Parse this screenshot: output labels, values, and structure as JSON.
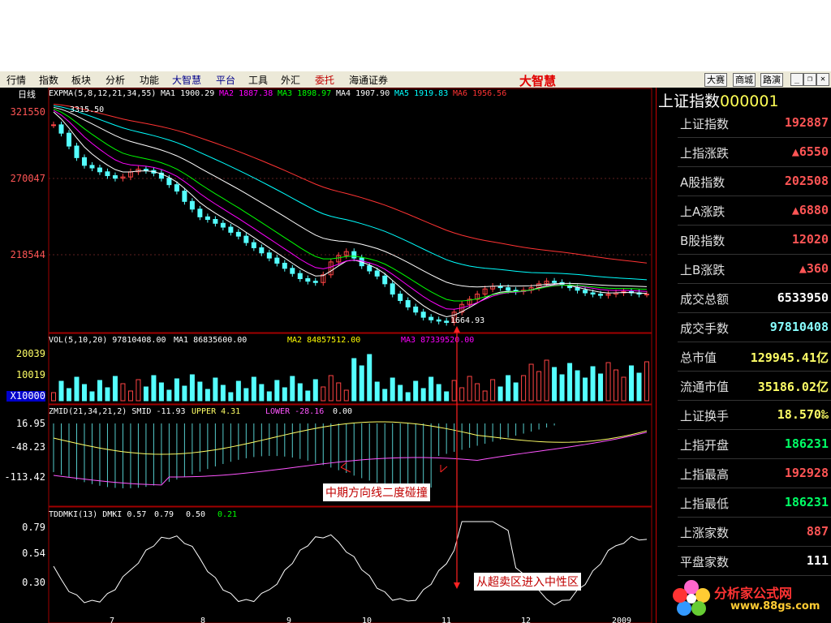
{
  "menubar": {
    "items": [
      "行情",
      "指数",
      "板块",
      "分析",
      "功能",
      "大智慧",
      "平台",
      "工具",
      "外汇",
      "委托",
      "海通证券"
    ],
    "logo": "大智慧",
    "right_buttons": [
      "大赛",
      "商城",
      "路演"
    ]
  },
  "chart_data": {
    "type": "line",
    "period_label": "日线",
    "main": {
      "indicator_line": "EXPMA(5,8,12,21,34,55)",
      "ma_values": [
        {
          "name": "MA1",
          "value": "1900.29",
          "color": "#ffffff"
        },
        {
          "name": "MA2",
          "value": "1887.38",
          "color": "#ff00ff"
        },
        {
          "name": "MA3",
          "value": "1898.97",
          "color": "#00ff00"
        },
        {
          "name": "MA4",
          "value": "1907.90",
          "color": "#ffffff"
        },
        {
          "name": "MA5",
          "value": "1919.83",
          "color": "#00ffff"
        },
        {
          "name": "MA6",
          "value": "1956.56",
          "color": "#ff3333"
        }
      ],
      "y_ticks": [
        "321550",
        "270047",
        "218544"
      ],
      "high_label": "3315.50",
      "low_label": "1664.93",
      "close_approx": [
        3215,
        3150,
        3050,
        2960,
        2900,
        2880,
        2850,
        2820,
        2800,
        2810,
        2850,
        2870,
        2860,
        2840,
        2800,
        2750,
        2700,
        2620,
        2560,
        2500,
        2480,
        2450,
        2420,
        2380,
        2350,
        2300,
        2260,
        2220,
        2180,
        2140,
        2100,
        2060,
        2020,
        2000,
        1990,
        2050,
        2150,
        2200,
        2230,
        2180,
        2120,
        2080,
        2040,
        1980,
        1900,
        1850,
        1800,
        1760,
        1720,
        1700,
        1690,
        1680,
        1760,
        1820,
        1860,
        1900,
        1940,
        1960,
        1950,
        1930,
        1920,
        1930,
        1950,
        1980,
        2000,
        1990,
        1970,
        1950,
        1930,
        1910,
        1900,
        1890,
        1900,
        1910,
        1920,
        1910,
        1900,
        1900
      ]
    },
    "volume": {
      "label": "VOL(5,10,20)",
      "value": "97810408.00",
      "ma_text": [
        "MA1 86835600.00",
        "MA2 84857512.00",
        "MA3 87339520.00"
      ],
      "y_ticks": [
        "20039",
        "10019",
        "X10000"
      ]
    },
    "zmid": {
      "label": "ZMID(21,34,21,2)",
      "smid": "SMID -11.93",
      "upper": "UPPER 4.31",
      "lower": "LOWER -28.16",
      "extra": "0.00",
      "y_ticks": [
        "16.95",
        "-48.23",
        "-113.42"
      ]
    },
    "tddmki": {
      "label": "TDDMKI(13)",
      "dmki": "DMKI 0.57",
      "v1": "0.79",
      "v2": "0.50",
      "v3": "0.21",
      "y_ticks": [
        "0.79",
        "0.54",
        "0.30"
      ]
    },
    "x_ticks": [
      "7",
      "8",
      "9",
      "10",
      "11",
      "12",
      "2009"
    ],
    "annotations": [
      "中期方向线二度碰撞",
      "从超卖区进入中性区"
    ]
  },
  "panel": {
    "title": "上证指数",
    "code": "000001",
    "rows": [
      {
        "label": "上证指数",
        "value": "192887",
        "color": "red"
      },
      {
        "label": "上指涨跌",
        "value": "▲6550",
        "color": "red"
      },
      {
        "label": "A股指数",
        "value": "202508",
        "color": "red"
      },
      {
        "label": "上A涨跌",
        "value": "▲6880",
        "color": "red"
      },
      {
        "label": "B股指数",
        "value": "12020",
        "color": "red"
      },
      {
        "label": "上B涨跌",
        "value": "▲360",
        "color": "red"
      },
      {
        "label": "成交总额",
        "value": "6533950",
        "color": "white"
      },
      {
        "label": "成交手数",
        "value": "97810408",
        "color": "cyan"
      },
      {
        "label": "总市值",
        "value": "129945.41亿",
        "color": "yellow"
      },
      {
        "label": "流通市值",
        "value": "35186.02亿",
        "color": "yellow"
      },
      {
        "label": "上证换手",
        "value": "18.570‰",
        "color": "yellow"
      },
      {
        "label": "上指开盘",
        "value": "186231",
        "color": "green"
      },
      {
        "label": "上指最高",
        "value": "192928",
        "color": "red"
      },
      {
        "label": "上指最低",
        "value": "186231",
        "color": "green"
      },
      {
        "label": "上涨家数",
        "value": "887",
        "color": "red"
      },
      {
        "label": "平盘家数",
        "value": "111",
        "color": "white"
      }
    ]
  },
  "watermark": {
    "text": "分析家公式网",
    "url": "www.88gs.com"
  }
}
